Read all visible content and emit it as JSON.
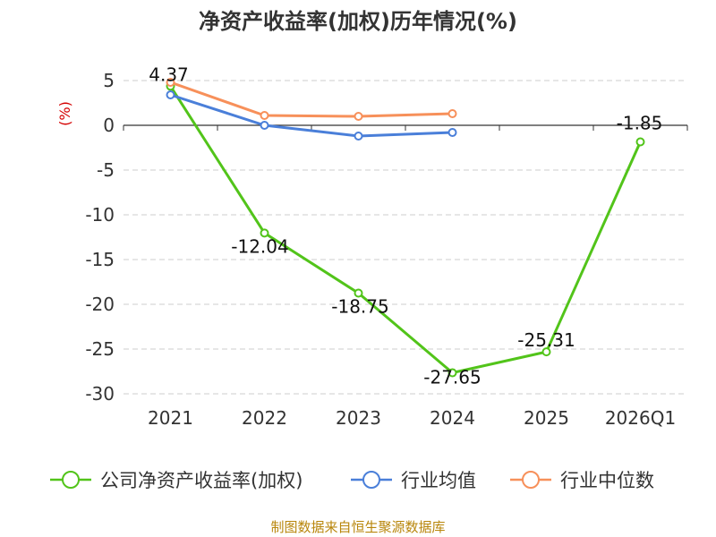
{
  "chart_data": {
    "type": "line",
    "title": "净资产收益率(加权)历年情况(%)",
    "ylabel": "(%)",
    "xlabel": "",
    "categories": [
      "2021",
      "2022",
      "2023",
      "2024",
      "2025",
      "2026Q1"
    ],
    "ylim": [
      -30,
      5
    ],
    "yticks": [
      5,
      0,
      -5,
      -10,
      -15,
      -20,
      -25,
      -30
    ],
    "series": [
      {
        "name": "公司净资产收益率(加权)",
        "color": "#52c41a",
        "values": [
          4.37,
          -12.04,
          -18.75,
          -27.65,
          -25.31,
          -1.85
        ],
        "labels": [
          "4.37",
          "-12.04",
          "-18.75",
          "-27.65",
          "-25.31",
          "-1.85"
        ]
      },
      {
        "name": "行业均值",
        "color": "#4a7fd9",
        "values": [
          3.4,
          0.0,
          -1.2,
          -0.8,
          null,
          null
        ]
      },
      {
        "name": "行业中位数",
        "color": "#f7905a",
        "values": [
          4.8,
          1.1,
          1.0,
          1.3,
          null,
          null
        ]
      }
    ],
    "grid": true,
    "legend": "bottom"
  },
  "source": "制图数据来自恒生聚源数据库"
}
